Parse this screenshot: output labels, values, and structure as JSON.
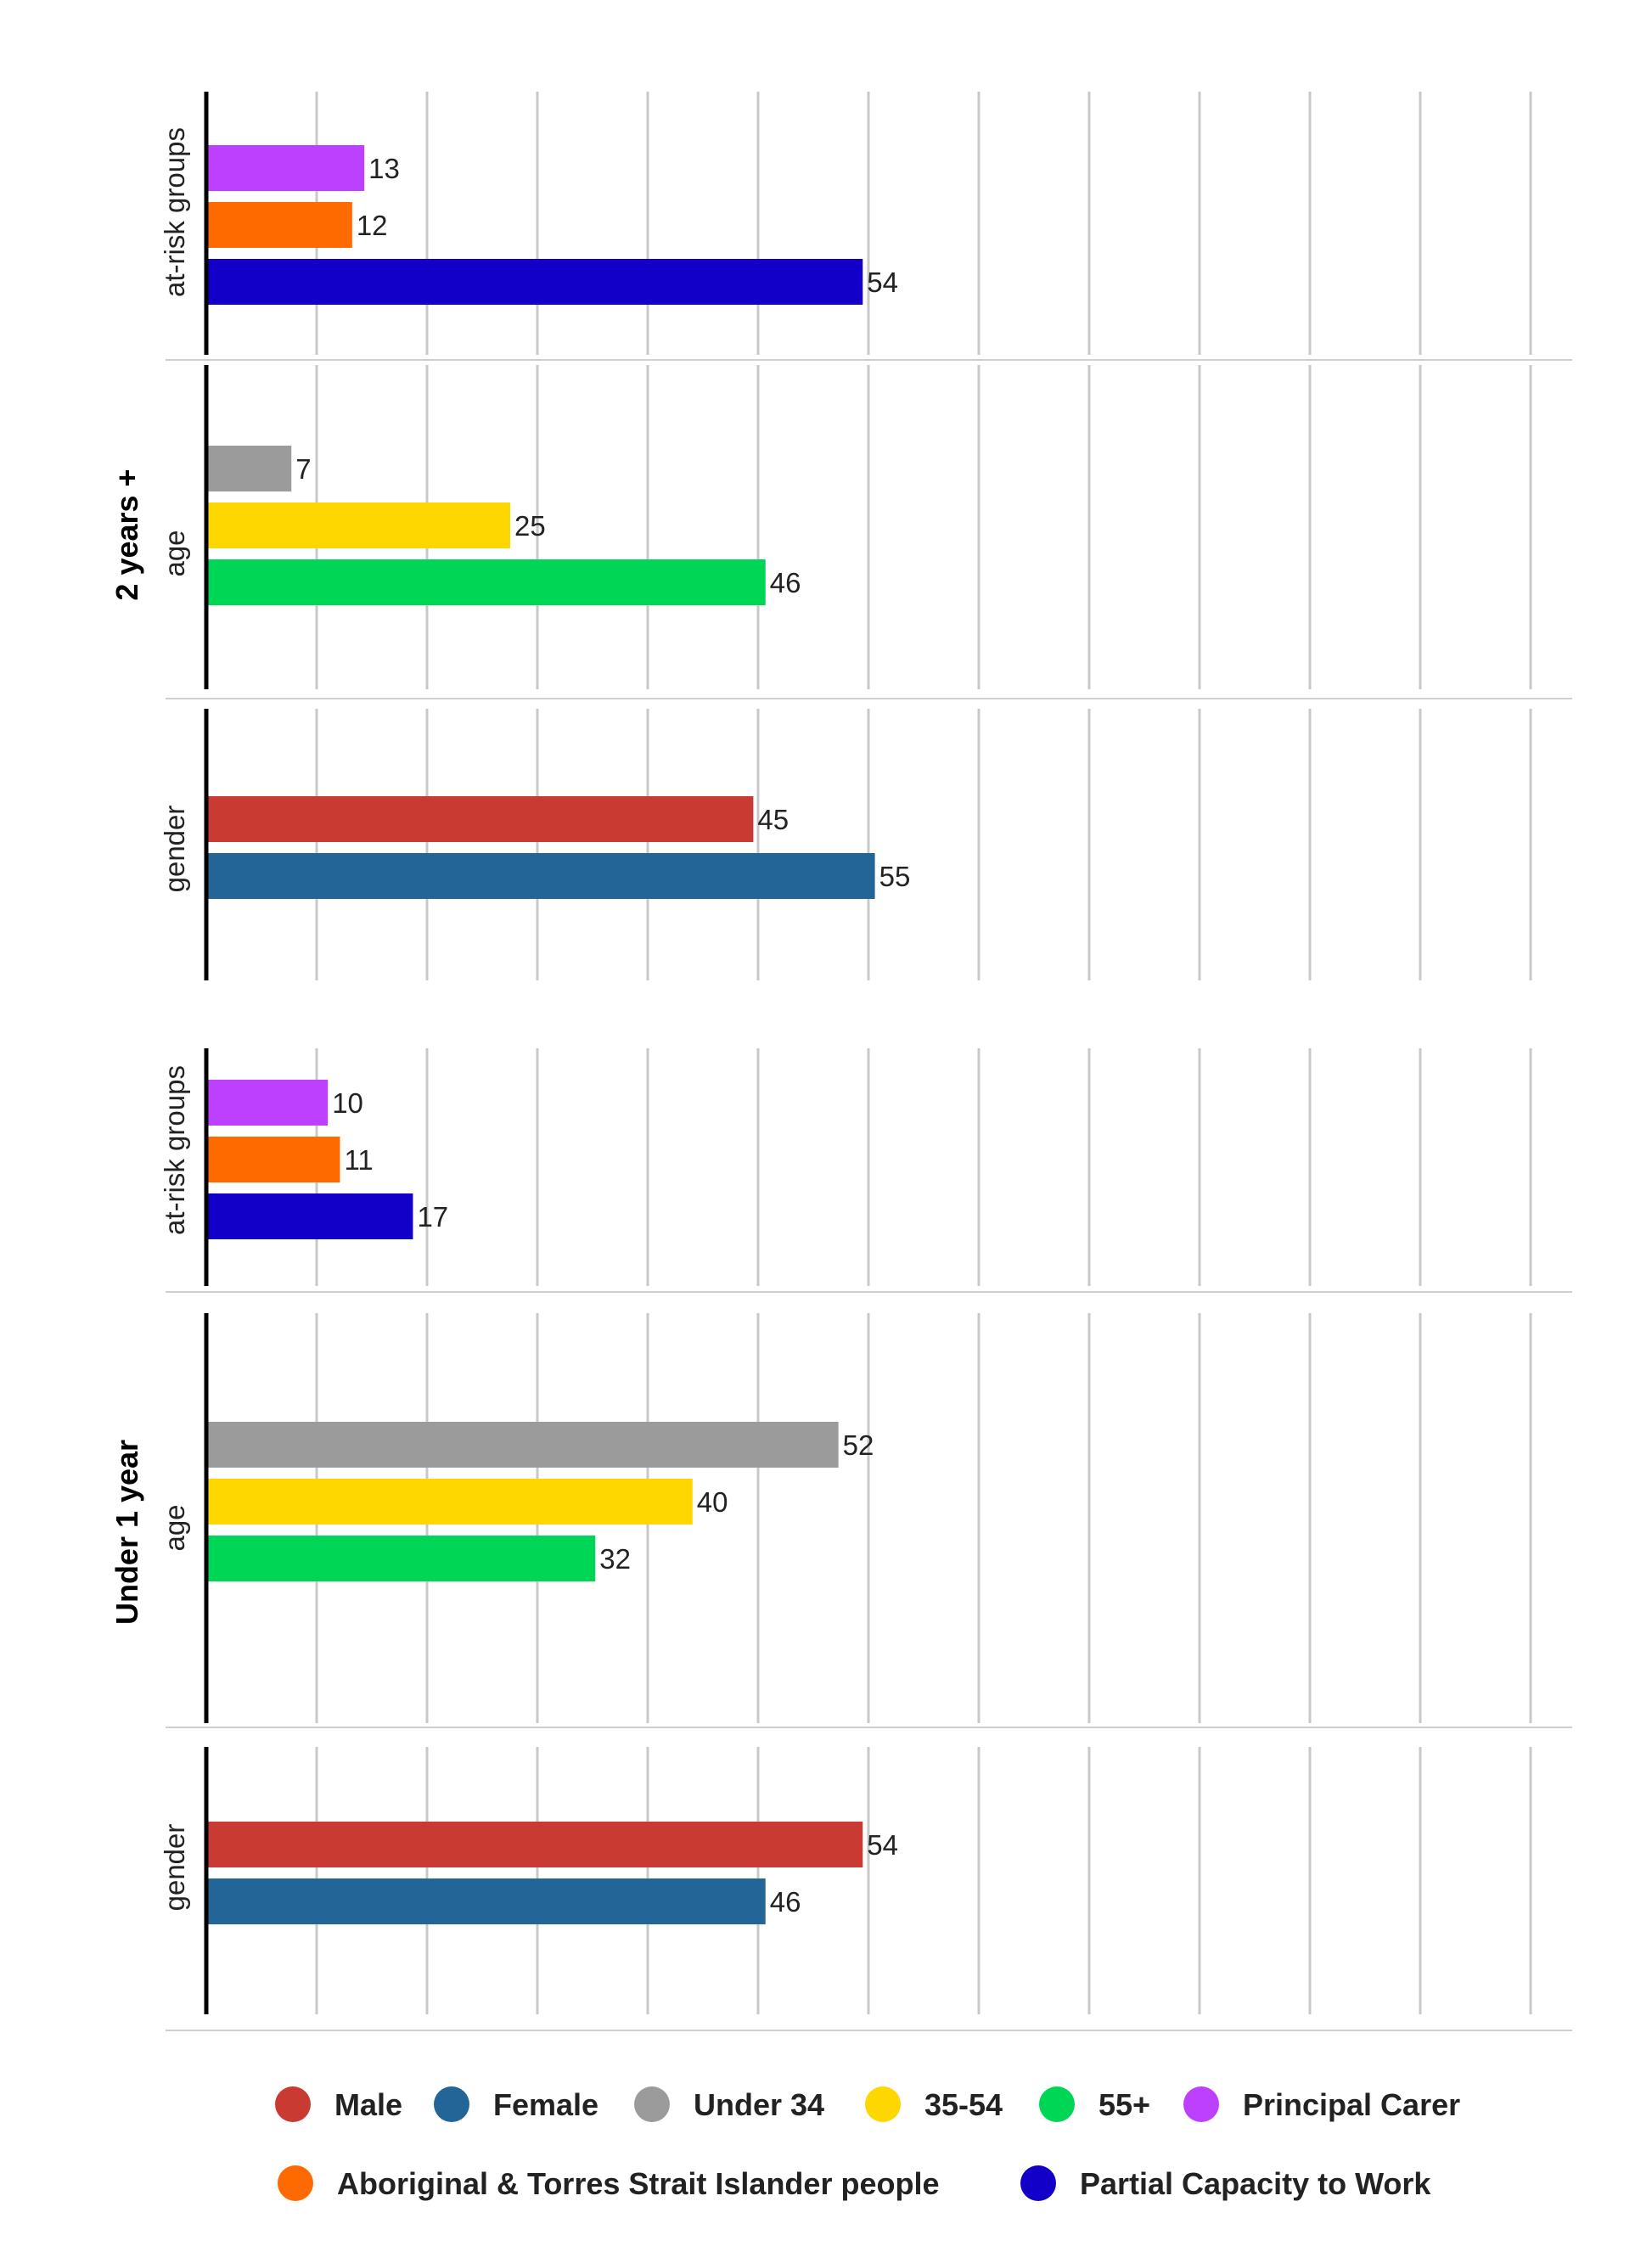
{
  "chart_data": {
    "type": "bar",
    "orientation": "horizontal",
    "xlim": [
      0,
      60
    ],
    "grid": true,
    "legend_placement": "bottom",
    "colors": {
      "male": "#C83A32",
      "female": "#236597",
      "under34": "#9B9B9B",
      "age35_54": "#FFD700",
      "age55plus": "#00D655",
      "principal_carer": "#BD40FF",
      "atsi": "#FF6A00",
      "partial_capacity": "#1200C9"
    },
    "groups": [
      {
        "label": "2 years +",
        "sections": [
          {
            "label": "at-risk groups",
            "bars": [
              {
                "series": "principal_carer",
                "value": 13,
                "label": "13"
              },
              {
                "series": "atsi",
                "value": 12,
                "label": "12"
              },
              {
                "series": "partial_capacity",
                "value": 54,
                "label": "54"
              }
            ]
          },
          {
            "label": "age",
            "bars": [
              {
                "series": "under34",
                "value": 7,
                "label": "7"
              },
              {
                "series": "age35_54",
                "value": 25,
                "label": "25"
              },
              {
                "series": "age55plus",
                "value": 46,
                "label": "46"
              }
            ]
          },
          {
            "label": "gender",
            "bars": [
              {
                "series": "male",
                "value": 45,
                "label": "45"
              },
              {
                "series": "female",
                "value": 55,
                "label": "55"
              }
            ]
          }
        ]
      },
      {
        "label": "Under 1 year",
        "sections": [
          {
            "label": "at-risk groups",
            "bars": [
              {
                "series": "principal_carer",
                "value": 10,
                "label": "10"
              },
              {
                "series": "atsi",
                "value": 11,
                "label": "11"
              },
              {
                "series": "partial_capacity",
                "value": 17,
                "label": "17"
              }
            ]
          },
          {
            "label": "age",
            "bars": [
              {
                "series": "under34",
                "value": 52,
                "label": "52"
              },
              {
                "series": "age35_54",
                "value": 40,
                "label": "40"
              },
              {
                "series": "age55plus",
                "value": 32,
                "label": "32"
              }
            ]
          },
          {
            "label": "gender",
            "bars": [
              {
                "series": "male",
                "value": 54,
                "label": "54"
              },
              {
                "series": "female",
                "value": 46,
                "label": "46"
              }
            ]
          }
        ]
      }
    ],
    "legend": [
      {
        "series": "male",
        "name": "Male"
      },
      {
        "series": "female",
        "name": "Female"
      },
      {
        "series": "under34",
        "name": "Under 34"
      },
      {
        "series": "age35_54",
        "name": "35-54"
      },
      {
        "series": "age55plus",
        "name": "55+"
      },
      {
        "series": "principal_carer",
        "name": "Principal Carer"
      },
      {
        "series": "atsi",
        "name": "Aboriginal & Torres Strait Islander people"
      },
      {
        "series": "partial_capacity",
        "name": "Partial Capacity to Work"
      }
    ]
  }
}
